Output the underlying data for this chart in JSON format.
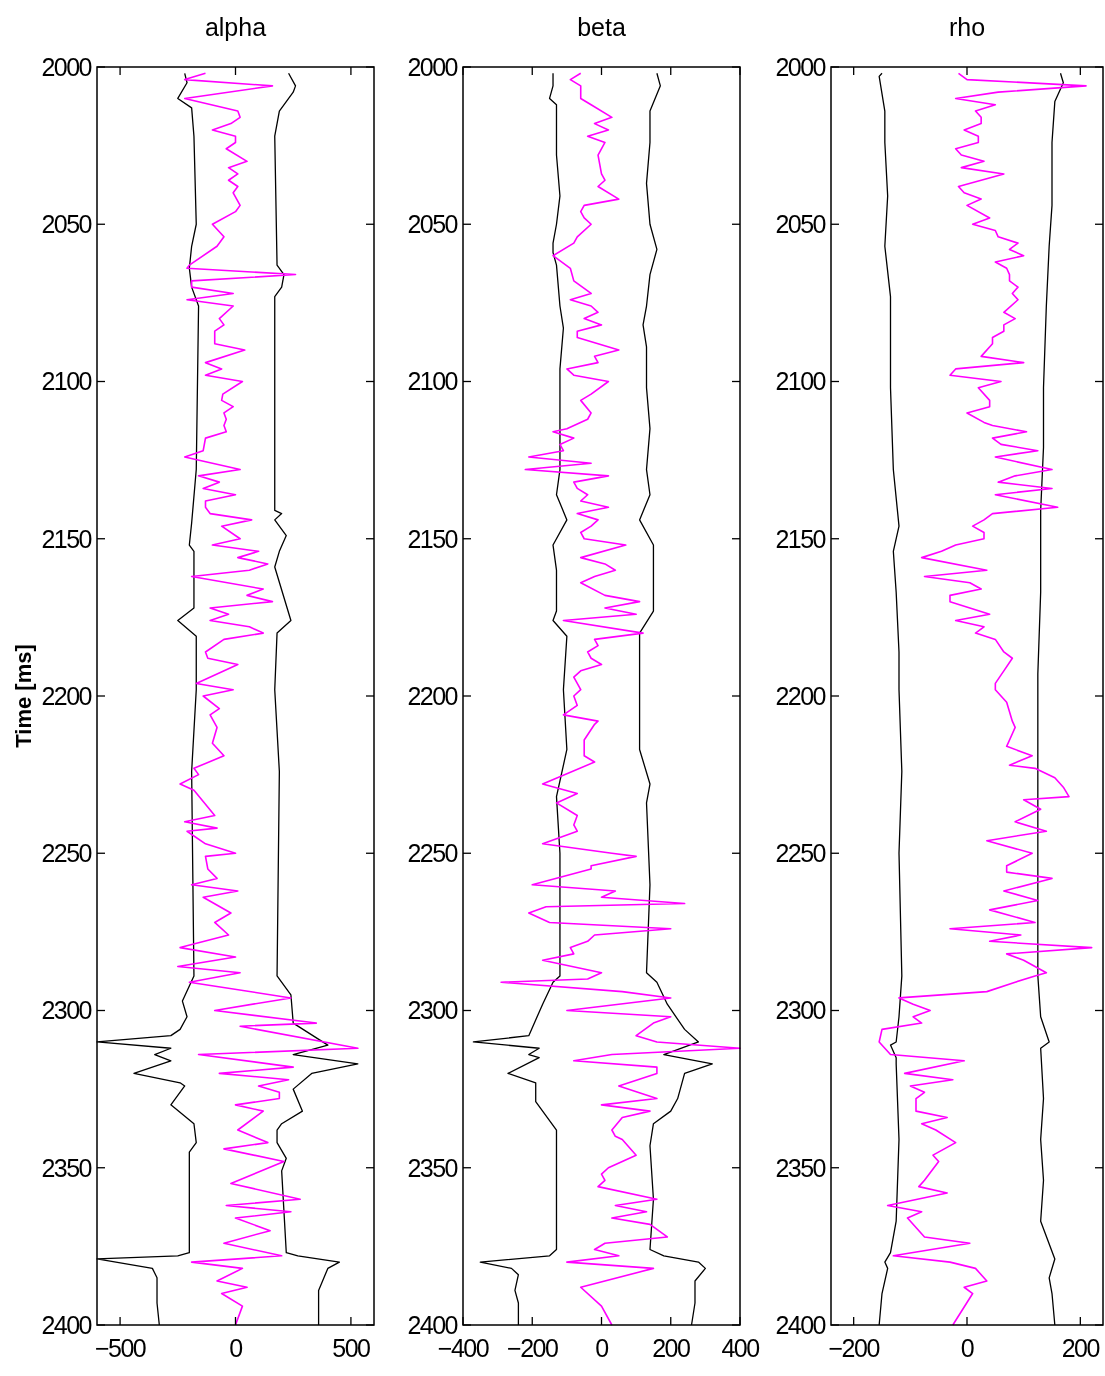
{
  "chart_data": [
    {
      "type": "line",
      "orientation": "horizontal",
      "title": "alpha",
      "ylabel": "Time [ms]",
      "xlim": [
        -600,
        600
      ],
      "xticks": [
        -500,
        0,
        500
      ],
      "ylim": [
        2400,
        2000
      ],
      "yticks": [
        2000,
        2050,
        2100,
        2150,
        2200,
        2250,
        2300,
        2350,
        2400
      ],
      "series": [
        {
          "color": "#000000",
          "x": [
            2002,
            2005,
            2010,
            2013,
            2022,
            2050,
            2057,
            2064,
            2070,
            2076,
            2128,
            2145,
            2152,
            2154,
            2172,
            2176,
            2181,
            2198,
            2224,
            2289,
            2297,
            2302,
            2306,
            2308,
            2310,
            2312,
            2314,
            2316,
            2320,
            2323,
            2324,
            2330,
            2336,
            2342,
            2345,
            2377,
            2378,
            2379,
            2382,
            2385,
            2393,
            2400
          ],
          "values": [
            -220,
            -210,
            -250,
            -190,
            -180,
            -170,
            -190,
            -200,
            -190,
            -160,
            -170,
            -190,
            -200,
            -180,
            -180,
            -250,
            -170,
            -170,
            -190,
            -180,
            -230,
            -210,
            -240,
            -280,
            -600,
            -280,
            -350,
            -280,
            -440,
            -240,
            -220,
            -280,
            -180,
            -170,
            -200,
            -200,
            -250,
            -600,
            -360,
            -340,
            -340,
            -330
          ]
        },
        {
          "color": "#000000",
          "x": [
            2002,
            2006,
            2008,
            2014,
            2022,
            2063,
            2066,
            2070,
            2073,
            2141,
            2142,
            2144,
            2149,
            2154,
            2159,
            2176,
            2180,
            2198,
            2224,
            2289,
            2295,
            2304,
            2311,
            2314,
            2317,
            2320,
            2325,
            2332,
            2336,
            2338,
            2342,
            2347,
            2351,
            2377,
            2378,
            2380,
            2382,
            2389,
            2400
          ],
          "values": [
            230,
            260,
            250,
            190,
            170,
            180,
            210,
            200,
            170,
            170,
            200,
            170,
            220,
            190,
            170,
            240,
            180,
            170,
            190,
            180,
            240,
            250,
            400,
            250,
            530,
            330,
            250,
            290,
            200,
            180,
            180,
            220,
            200,
            220,
            270,
            450,
            400,
            360,
            360
          ]
        },
        {
          "color": "#ff00ff",
          "x": [
            2002,
            2004,
            2006,
            2010,
            2014,
            2016,
            2018,
            2020,
            2022,
            2024,
            2026,
            2030,
            2032,
            2034,
            2036,
            2038,
            2040,
            2044,
            2046,
            2050,
            2054,
            2057,
            2063,
            2064,
            2066,
            2068,
            2070,
            2072,
            2074,
            2076,
            2080,
            2082,
            2084,
            2088,
            2090,
            2094,
            2096,
            2098,
            2100,
            2104,
            2106,
            2108,
            2110,
            2112,
            2114,
            2116,
            2118,
            2122,
            2124,
            2128,
            2130,
            2132,
            2134,
            2136,
            2138,
            2140,
            2142,
            2144,
            2146,
            2150,
            2152,
            2154,
            2156,
            2158,
            2160,
            2162,
            2166,
            2168,
            2170,
            2172,
            2174,
            2176,
            2178,
            2180,
            2182,
            2186,
            2188,
            2190,
            2196,
            2198,
            2200,
            2204,
            2206,
            2210,
            2215,
            2219,
            2223,
            2225,
            2228,
            2230,
            2238,
            2240,
            2242,
            2243,
            2247,
            2250,
            2251,
            2255,
            2258,
            2260,
            2262,
            2264,
            2269,
            2272,
            2276,
            2280,
            2283,
            2286,
            2288,
            2291,
            2296,
            2300,
            2304,
            2305,
            2312,
            2314,
            2318,
            2320,
            2322,
            2324,
            2326,
            2328,
            2330,
            2332,
            2338,
            2342,
            2344,
            2348,
            2355,
            2360,
            2362,
            2364,
            2366,
            2370,
            2374,
            2378,
            2380,
            2382,
            2386,
            2388,
            2390,
            2394,
            2400
          ],
          "values": [
            -130,
            -220,
            160,
            -220,
            10,
            20,
            -20,
            -100,
            0,
            0,
            -40,
            50,
            -30,
            10,
            -30,
            10,
            -10,
            20,
            0,
            -100,
            -50,
            -80,
            -200,
            -210,
            260,
            -190,
            -190,
            -10,
            -210,
            -10,
            -70,
            -50,
            -90,
            -90,
            40,
            -130,
            -60,
            -130,
            30,
            -55,
            -60,
            -10,
            -50,
            -40,
            -50,
            -40,
            -130,
            -140,
            -220,
            20,
            -160,
            -70,
            -140,
            0,
            -130,
            -130,
            -110,
            70,
            -60,
            20,
            -100,
            100,
            10,
            140,
            60,
            -190,
            120,
            50,
            160,
            -110,
            -30,
            -110,
            60,
            120,
            -50,
            -130,
            -120,
            10,
            -170,
            -10,
            -140,
            -70,
            -110,
            -80,
            -100,
            -50,
            -180,
            -160,
            -240,
            -180,
            -90,
            -220,
            -80,
            -210,
            -130,
            0,
            -130,
            -120,
            -80,
            -190,
            10,
            -140,
            -20,
            -90,
            -30,
            -240,
            0,
            -250,
            20,
            -200,
            240,
            -90,
            350,
            20,
            530,
            -160,
            250,
            -70,
            230,
            100,
            190,
            190,
            0,
            120,
            10,
            140,
            -50,
            210,
            -20,
            280,
            -40,
            240,
            0,
            150,
            -50,
            200,
            -190,
            30,
            -80,
            50,
            -60,
            30,
            0
          ]
        }
      ]
    },
    {
      "type": "line",
      "orientation": "horizontal",
      "title": "beta",
      "xlim": [
        -400,
        400
      ],
      "xticks": [
        -400,
        -200,
        0,
        200,
        400
      ],
      "ylim": [
        2400,
        2000
      ],
      "yticks": [
        2000,
        2050,
        2100,
        2150,
        2200,
        2250,
        2300,
        2350,
        2400
      ],
      "series": [
        {
          "color": "#000000",
          "x": [
            2002,
            2006,
            2010,
            2012,
            2024,
            2028,
            2041,
            2050,
            2056,
            2059,
            2063,
            2076,
            2083,
            2096,
            2128,
            2136,
            2144,
            2152,
            2160,
            2173,
            2176,
            2181,
            2198,
            2217,
            2232,
            2250,
            2289,
            2291,
            2298,
            2308,
            2310,
            2312,
            2314,
            2315,
            2320,
            2323,
            2329,
            2338,
            2376,
            2378,
            2380,
            2382,
            2384,
            2389,
            2393,
            2400
          ],
          "values": [
            -140,
            -140,
            -150,
            -130,
            -130,
            -130,
            -120,
            -130,
            -140,
            -140,
            -130,
            -120,
            -110,
            -120,
            -120,
            -130,
            -100,
            -140,
            -130,
            -130,
            -140,
            -100,
            -110,
            -100,
            -130,
            -120,
            -120,
            -140,
            -170,
            -210,
            -370,
            -180,
            -210,
            -180,
            -270,
            -190,
            -190,
            -130,
            -130,
            -150,
            -350,
            -260,
            -240,
            -250,
            -240,
            -240
          ]
        },
        {
          "color": "#000000",
          "x": [
            2002,
            2006,
            2014,
            2024,
            2037,
            2050,
            2058,
            2066,
            2076,
            2082,
            2089,
            2102,
            2115,
            2128,
            2136,
            2144,
            2152,
            2160,
            2173,
            2180,
            2186,
            2198,
            2217,
            2228,
            2234,
            2260,
            2288,
            2291,
            2298,
            2306,
            2310,
            2314,
            2317,
            2320,
            2328,
            2332,
            2336,
            2343,
            2360,
            2376,
            2378,
            2380,
            2382,
            2386,
            2393,
            2400
          ],
          "values": [
            160,
            170,
            140,
            140,
            130,
            140,
            160,
            140,
            130,
            120,
            130,
            130,
            140,
            130,
            140,
            110,
            150,
            150,
            150,
            110,
            110,
            110,
            110,
            140,
            130,
            140,
            130,
            160,
            190,
            240,
            280,
            180,
            320,
            240,
            220,
            200,
            150,
            140,
            150,
            140,
            180,
            280,
            300,
            270,
            270,
            260
          ]
        },
        {
          "color": "#ff00ff",
          "x": [
            2002,
            2004,
            2006,
            2010,
            2012,
            2016,
            2018,
            2020,
            2022,
            2024,
            2028,
            2034,
            2036,
            2038,
            2042,
            2044,
            2046,
            2048,
            2050,
            2054,
            2056,
            2060,
            2064,
            2068,
            2072,
            2074,
            2076,
            2078,
            2080,
            2082,
            2084,
            2086,
            2090,
            2092,
            2094,
            2096,
            2098,
            2100,
            2104,
            2106,
            2110,
            2112,
            2115,
            2116,
            2118,
            2120,
            2122,
            2124,
            2126,
            2128,
            2130,
            2132,
            2134,
            2136,
            2138,
            2140,
            2142,
            2144,
            2146,
            2148,
            2150,
            2152,
            2156,
            2158,
            2160,
            2162,
            2164,
            2168,
            2170,
            2172,
            2174,
            2176,
            2180,
            2182,
            2184,
            2186,
            2188,
            2190,
            2192,
            2194,
            2198,
            2200,
            2203,
            2206,
            2208,
            2209,
            2214,
            2219,
            2221,
            2228,
            2231,
            2234,
            2238,
            2241,
            2243,
            2247,
            2250,
            2251,
            2254,
            2255,
            2260,
            2262,
            2264,
            2266,
            2267,
            2269,
            2272,
            2274,
            2276,
            2278,
            2280,
            2282,
            2284,
            2288,
            2290,
            2291,
            2294,
            2296,
            2300,
            2302,
            2304,
            2308,
            2310,
            2312,
            2314,
            2316,
            2318,
            2320,
            2324,
            2328,
            2330,
            2332,
            2334,
            2338,
            2340,
            2341,
            2346,
            2350,
            2352,
            2354,
            2356,
            2360,
            2362,
            2364,
            2366,
            2368,
            2372,
            2374,
            2376,
            2378,
            2380,
            2382,
            2388,
            2394,
            2400
          ],
          "values": [
            -60,
            -90,
            -60,
            -60,
            -30,
            30,
            -20,
            20,
            -40,
            10,
            -10,
            0,
            10,
            -10,
            50,
            -50,
            -60,
            -50,
            -30,
            -70,
            -80,
            -140,
            -90,
            -80,
            -30,
            -90,
            -30,
            -10,
            -50,
            0,
            -70,
            -70,
            50,
            -20,
            -10,
            -100,
            -80,
            20,
            -30,
            -60,
            -30,
            -40,
            -100,
            -140,
            -80,
            -120,
            -110,
            -210,
            -30,
            -220,
            20,
            -80,
            -70,
            -40,
            -60,
            20,
            -70,
            -10,
            -30,
            -60,
            -50,
            70,
            -60,
            10,
            40,
            -20,
            -60,
            10,
            110,
            10,
            100,
            -110,
            120,
            -20,
            -10,
            -40,
            -30,
            0,
            -60,
            -80,
            -60,
            -80,
            -70,
            -110,
            -10,
            -20,
            -50,
            -50,
            -20,
            -170,
            -70,
            -130,
            -70,
            -80,
            -70,
            -170,
            30,
            100,
            -30,
            -30,
            -200,
            40,
            0,
            240,
            -160,
            -210,
            -150,
            200,
            -20,
            -40,
            -90,
            -80,
            -170,
            0,
            -40,
            -290,
            60,
            200,
            -100,
            200,
            150,
            100,
            160,
            400,
            30,
            -80,
            160,
            160,
            50,
            160,
            0,
            140,
            60,
            30,
            40,
            60,
            100,
            20,
            0,
            10,
            -10,
            160,
            40,
            130,
            30,
            140,
            190,
            10,
            -20,
            50,
            -100,
            150,
            -60,
            0,
            30
          ]
        }
      ]
    },
    {
      "type": "line",
      "orientation": "horizontal",
      "title": "rho",
      "xlim": [
        -240,
        240
      ],
      "xticks": [
        -200,
        0,
        200
      ],
      "ylim": [
        2400,
        2000
      ],
      "yticks": [
        2000,
        2050,
        2100,
        2150,
        2200,
        2250,
        2300,
        2350,
        2400
      ],
      "series": [
        {
          "color": "#000000",
          "x": [
            2002,
            2003,
            2014,
            2024,
            2041,
            2057,
            2073,
            2102,
            2128,
            2146,
            2154,
            2167,
            2186,
            2198,
            2224,
            2250,
            2289,
            2302,
            2310,
            2311,
            2315,
            2317,
            2341,
            2367,
            2377,
            2380,
            2382,
            2390,
            2400
          ],
          "values": [
            -150,
            -155,
            -145,
            -145,
            -140,
            -145,
            -135,
            -135,
            -130,
            -120,
            -130,
            -125,
            -120,
            -120,
            -115,
            -120,
            -115,
            -120,
            -125,
            -135,
            -125,
            -125,
            -120,
            -125,
            -135,
            -145,
            -140,
            -150,
            -155
          ]
        },
        {
          "color": "#000000",
          "x": [
            2002,
            2005,
            2011,
            2024,
            2044,
            2057,
            2076,
            2102,
            2121,
            2141,
            2167,
            2193,
            2198,
            2224,
            2250,
            2289,
            2302,
            2310,
            2312,
            2328,
            2341,
            2354,
            2367,
            2379,
            2385,
            2390,
            2400
          ],
          "values": [
            165,
            170,
            155,
            150,
            150,
            145,
            140,
            135,
            135,
            130,
            130,
            125,
            125,
            125,
            125,
            125,
            130,
            145,
            130,
            135,
            130,
            135,
            130,
            155,
            145,
            150,
            155
          ]
        },
        {
          "color": "#ff00ff",
          "x": [
            2002,
            2004,
            2006,
            2008,
            2010,
            2012,
            2014,
            2016,
            2018,
            2020,
            2022,
            2024,
            2026,
            2028,
            2030,
            2032,
            2034,
            2038,
            2040,
            2042,
            2044,
            2048,
            2050,
            2052,
            2054,
            2056,
            2058,
            2060,
            2062,
            2064,
            2066,
            2068,
            2070,
            2072,
            2074,
            2078,
            2080,
            2082,
            2084,
            2086,
            2088,
            2092,
            2094,
            2096,
            2098,
            2100,
            2102,
            2106,
            2108,
            2110,
            2113,
            2114,
            2116,
            2118,
            2120,
            2122,
            2124,
            2128,
            2130,
            2132,
            2134,
            2136,
            2140,
            2142,
            2144,
            2146,
            2148,
            2150,
            2152,
            2154,
            2156,
            2160,
            2162,
            2164,
            2166,
            2168,
            2170,
            2174,
            2176,
            2178,
            2180,
            2182,
            2186,
            2188,
            2192,
            2196,
            2198,
            2202,
            2208,
            2210,
            2212,
            2216,
            2219,
            2222,
            2223,
            2226,
            2229,
            2232,
            2233,
            2236,
            2240,
            2243,
            2246,
            2250,
            2254,
            2256,
            2258,
            2262,
            2265,
            2268,
            2272,
            2274,
            2276,
            2278,
            2280,
            2282,
            2284,
            2288,
            2289,
            2291,
            2294,
            2296,
            2298,
            2300,
            2302,
            2304,
            2306,
            2310,
            2314,
            2316,
            2320,
            2322,
            2324,
            2326,
            2328,
            2332,
            2334,
            2336,
            2338,
            2342,
            2346,
            2348,
            2354,
            2356,
            2358,
            2362,
            2364,
            2366,
            2372,
            2374,
            2378,
            2380,
            2382,
            2386,
            2388,
            2390,
            2400
          ],
          "values": [
            -15,
            0,
            210,
            55,
            -20,
            50,
            15,
            25,
            25,
            -5,
            20,
            20,
            -20,
            -10,
            30,
            -10,
            65,
            -15,
            -5,
            25,
            0,
            40,
            10,
            50,
            55,
            90,
            75,
            100,
            50,
            70,
            75,
            75,
            90,
            80,
            90,
            65,
            85,
            65,
            65,
            45,
            45,
            25,
            100,
            -20,
            -30,
            60,
            20,
            40,
            40,
            0,
            30,
            45,
            105,
            45,
            60,
            125,
            50,
            150,
            85,
            55,
            150,
            50,
            160,
            45,
            30,
            10,
            30,
            30,
            -20,
            -45,
            -80,
            35,
            -75,
            5,
            25,
            -30,
            -30,
            40,
            -20,
            30,
            15,
            50,
            65,
            80,
            65,
            50,
            50,
            70,
            80,
            85,
            80,
            70,
            115,
            75,
            120,
            155,
            170,
            180,
            100,
            130,
            85,
            140,
            35,
            115,
            70,
            70,
            150,
            65,
            125,
            40,
            120,
            -30,
            95,
            40,
            220,
            70,
            100,
            140,
            120,
            85,
            35,
            -120,
            -95,
            -65,
            -95,
            -80,
            -150,
            -155,
            -135,
            -5,
            -110,
            -25,
            -100,
            -75,
            -90,
            -90,
            -35,
            -80,
            -55,
            -20,
            -60,
            -50,
            -75,
            -85,
            -35,
            -140,
            -80,
            -105,
            -75,
            5,
            -130,
            -30,
            15,
            35,
            -5,
            10,
            -25
          ]
        }
      ]
    }
  ]
}
